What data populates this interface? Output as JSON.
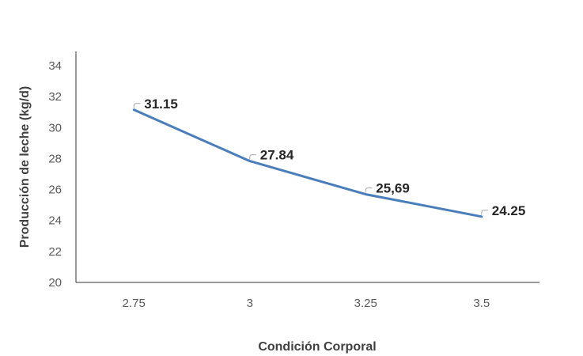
{
  "chart_data": {
    "type": "line",
    "categories": [
      "2.75",
      "3",
      "3.25",
      "3.5"
    ],
    "series": [
      {
        "values": [
          31.15,
          27.84,
          25.69,
          24.25
        ],
        "labels": [
          "31.15",
          "27.84",
          "25,69",
          "24.25"
        ],
        "color": "#4a7ebb"
      }
    ],
    "xlabel": "Condición Corporal",
    "ylabel": "Producción de leche (kg/d)",
    "ylim": [
      20,
      34
    ],
    "yticks": [
      "20",
      "22",
      "24",
      "26",
      "28",
      "30",
      "32",
      "34"
    ],
    "grid": false,
    "legend": "none"
  }
}
